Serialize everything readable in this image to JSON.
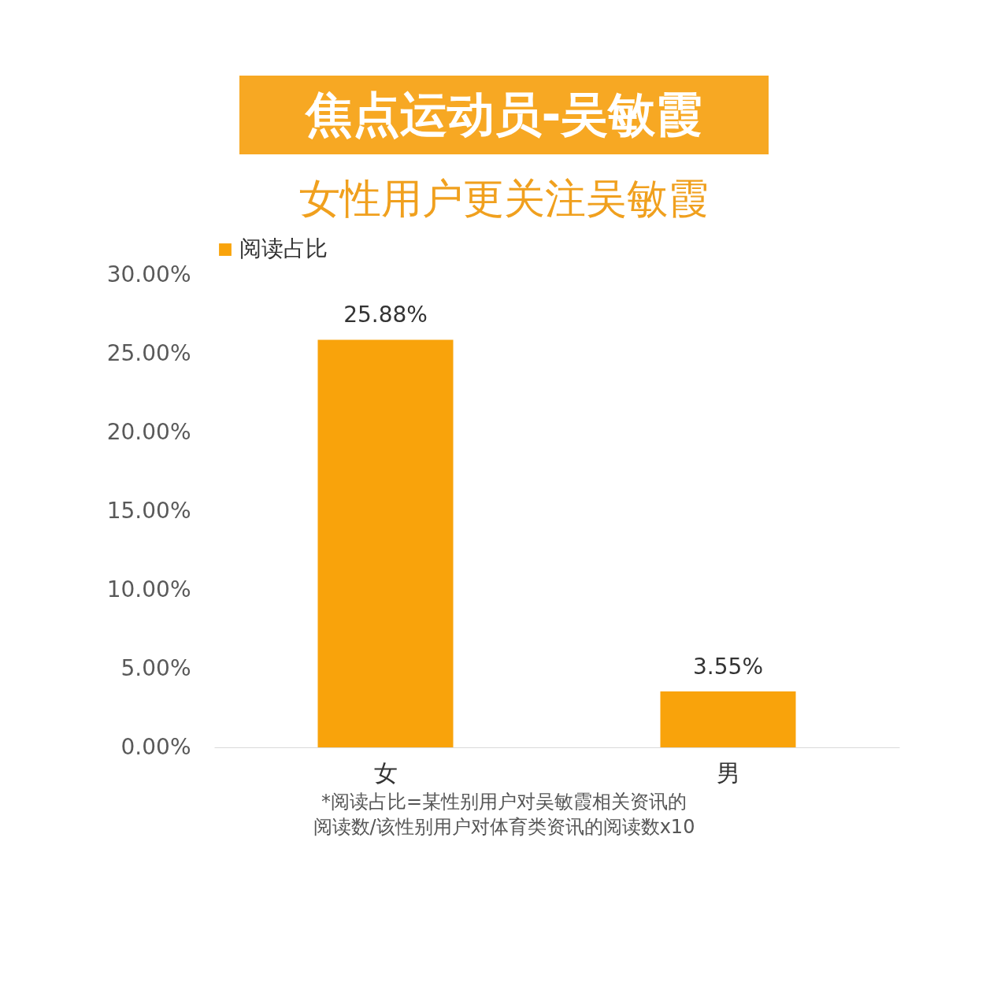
{
  "chart_data": {
    "type": "bar",
    "title": "焦点运动员-吴敏霞",
    "subtitle": "女性用户更关注吴敏霞",
    "categories": [
      "女",
      "男"
    ],
    "series": [
      {
        "name": "阅读占比",
        "color": "#f9a30b",
        "values": [
          25.88,
          3.55
        ],
        "value_labels": [
          "25.88%",
          "3.55%"
        ]
      }
    ],
    "ylim": [
      0,
      30
    ],
    "yticks": [
      {
        "value": 0,
        "label": "0.00%"
      },
      {
        "value": 5,
        "label": "5.00%"
      },
      {
        "value": 10,
        "label": "10.00%"
      },
      {
        "value": 15,
        "label": "15.00%"
      },
      {
        "value": 20,
        "label": "20.00%"
      },
      {
        "value": 25,
        "label": "25.00%"
      },
      {
        "value": 30,
        "label": "30.00%"
      }
    ],
    "grid": false,
    "legend": "top",
    "annotations": [
      "*阅读占比=某性别用户对吴敏霞相关资讯的",
      "阅读数/该性别用户对体育类资讯的阅读数x10"
    ]
  }
}
